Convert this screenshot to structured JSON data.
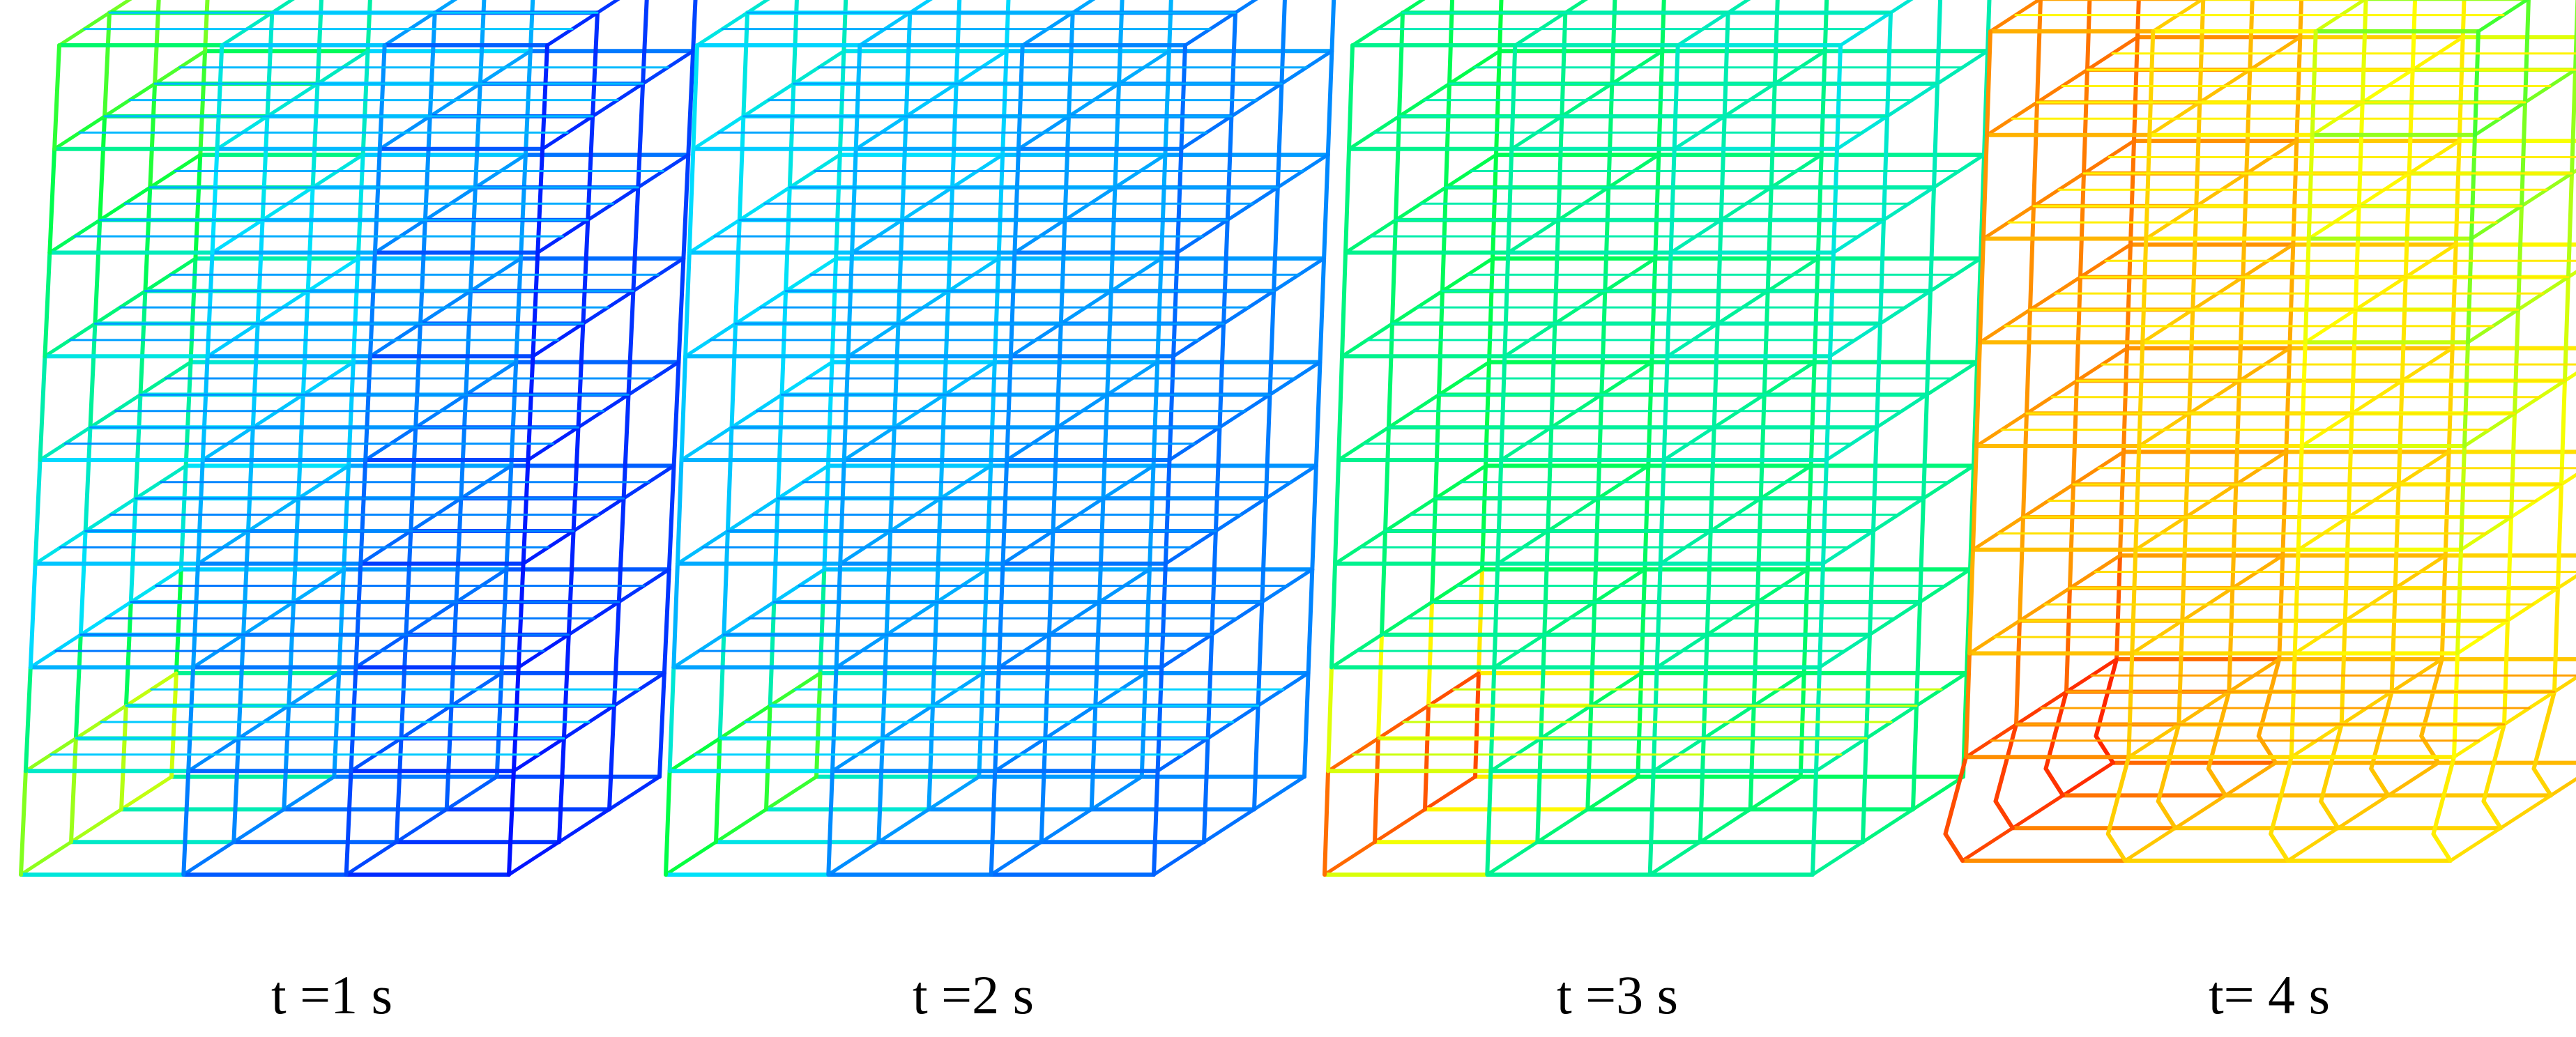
{
  "figure": {
    "panels": [
      {
        "caption": "t =1 s",
        "state": "mostly-blue, slight lean, warm edges on front-left column"
      },
      {
        "caption": "t =2 s",
        "state": "blue-cyan, light lean, yellow at first storey left"
      },
      {
        "caption": "t =3 s",
        "state": "green frame, cyan core, red at bottom-left base"
      },
      {
        "caption": "t= 4 s",
        "state": "red/orange left half, yellow-green right, base collapse"
      }
    ],
    "colormap": [
      "#0010ff",
      "#0080ff",
      "#00e0ff",
      "#00ff40",
      "#ffff00",
      "#ff8000",
      "#ff0000"
    ]
  }
}
